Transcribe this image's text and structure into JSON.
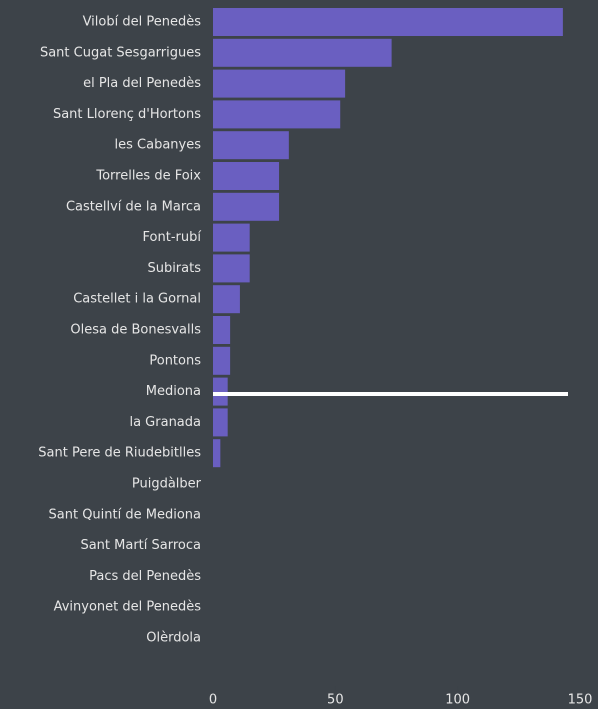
{
  "chart_data": {
    "type": "bar",
    "orientation": "horizontal",
    "categories": [
      "Vilobí del Penedès",
      "Sant Cugat Sesgarrigues",
      "el Pla del Penedès",
      "Sant Llorenç d'Hortons",
      "les Cabanyes",
      "Torrelles de Foix",
      "Castellví de la Marca",
      "Font-rubí",
      "Subirats",
      "Castellet i la Gornal",
      "Olesa de Bonesvalls",
      "Pontons",
      "Mediona",
      "la Granada",
      "Sant Pere de Riudebitlles",
      "Puigdàlber",
      "Sant Quintí de Mediona",
      "Sant Martí Sarroca",
      "Pacs del Penedès",
      "Avinyonet del Penedès",
      "Olèrdola"
    ],
    "values": [
      143,
      73,
      54,
      52,
      31,
      27,
      27,
      15,
      15,
      11,
      7,
      7,
      6,
      6,
      3,
      0,
      0,
      0,
      0,
      0,
      0
    ],
    "color": "#6a5fc1",
    "xlim": [
      0,
      150
    ],
    "xticks": [
      0,
      50,
      100,
      150
    ]
  }
}
